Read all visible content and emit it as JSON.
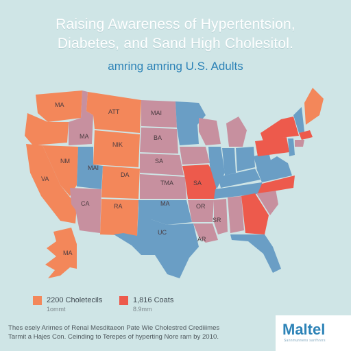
{
  "header": {
    "title_line1": "Raising Awareness of Hypertentsion,",
    "title_line2": "Diabetes, and Sand High Cholesitol.",
    "subtitle": "amring amring U.S. Adults"
  },
  "colors": {
    "background": "#cfe5e6",
    "orange": "#f3875a",
    "blue": "#6a9ec5",
    "mauve": "#c7909f",
    "red": "#ed5a4c",
    "title": "#ffffff",
    "subtitle": "#2d83b7"
  },
  "map": {
    "labels": {
      "wa": "MA",
      "mt": "ATT",
      "nd": "MAI",
      "or_id": "MA",
      "wy": "NIK",
      "sd": "BA",
      "nv": "NM",
      "ut": "MAI",
      "co": "DA",
      "ne": "SA",
      "ca": "VA",
      "ks": "TMA",
      "mo": "SA",
      "az": "CA",
      "nm": "RA",
      "ok": "MA",
      "ar": "OR",
      "ms": "SR",
      "tx": "UC",
      "ak": "MA",
      "la": "AR"
    }
  },
  "legend": [
    {
      "label": "2200 Choletecils",
      "sublabel": "1ommt",
      "color": "#f3875a"
    },
    {
      "label": "1,816 Coats",
      "sublabel": "8.9mm",
      "color": "#ed5a4c"
    }
  ],
  "footnote": {
    "line1": "Thes esely Arirnes of Renal Mesditaeon Pate Wie Cholestred Crediiimes",
    "line2": "Tarmit a Hajes Con. Ceinding to Terepes of hyperting Nore ram by 2010."
  },
  "logo": {
    "name": "Maltel",
    "tagline": "Sannmunnens sanfhnrrs"
  }
}
